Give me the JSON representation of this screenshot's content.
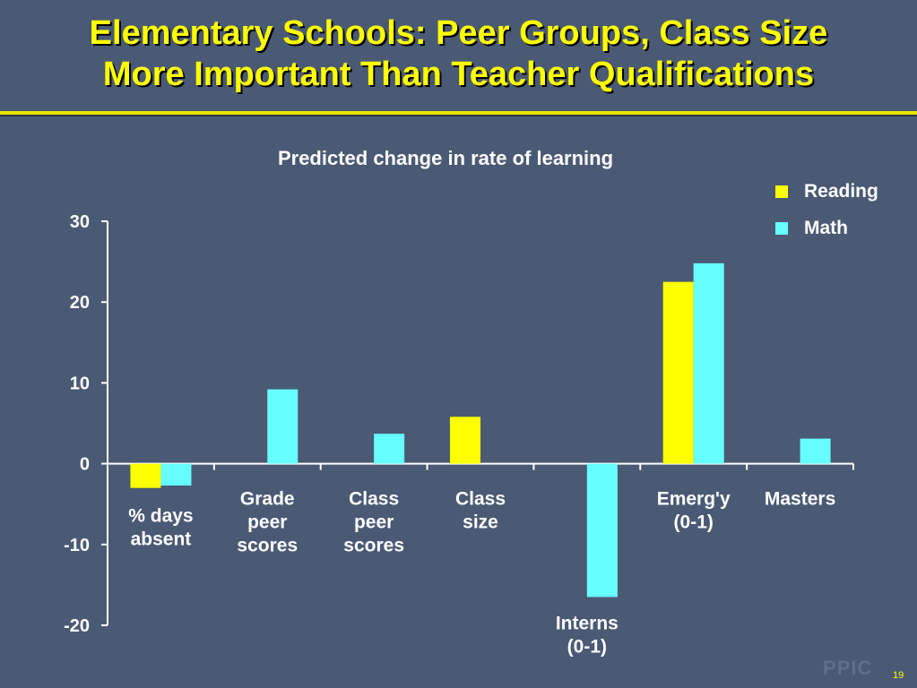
{
  "slide": {
    "title_line1": "Elementary Schools:  Peer Groups, Class Size",
    "title_line2": "More Important Than Teacher Qualifications",
    "logo": "PPIC",
    "page_number": "19"
  },
  "colors": {
    "background": "#4a5a74",
    "title": "#ffff00",
    "reading": "#ffff00",
    "math": "#66ffff",
    "axis": "#ffffff"
  },
  "chart_data": {
    "type": "bar",
    "title": "Predicted change in rate of learning",
    "categories": [
      [
        "% days",
        "absent"
      ],
      [
        "Grade",
        "peer",
        "scores"
      ],
      [
        "Class",
        "peer",
        "scores"
      ],
      [
        "Class",
        "size"
      ],
      [
        "Interns",
        "(0-1)"
      ],
      [
        "Emerg'y",
        "(0-1)"
      ],
      [
        "Masters"
      ]
    ],
    "series": [
      {
        "name": "Reading",
        "values": [
          -3,
          null,
          null,
          5.8,
          null,
          22.5,
          null
        ]
      },
      {
        "name": "Math",
        "values": [
          -2.7,
          9.2,
          3.7,
          null,
          -16.5,
          24.8,
          3.1
        ]
      }
    ],
    "ylim": [
      -20,
      30
    ],
    "yticks": [
      30,
      20,
      10,
      0,
      -10,
      -20
    ],
    "legend_position": "top-right",
    "grid": false
  }
}
